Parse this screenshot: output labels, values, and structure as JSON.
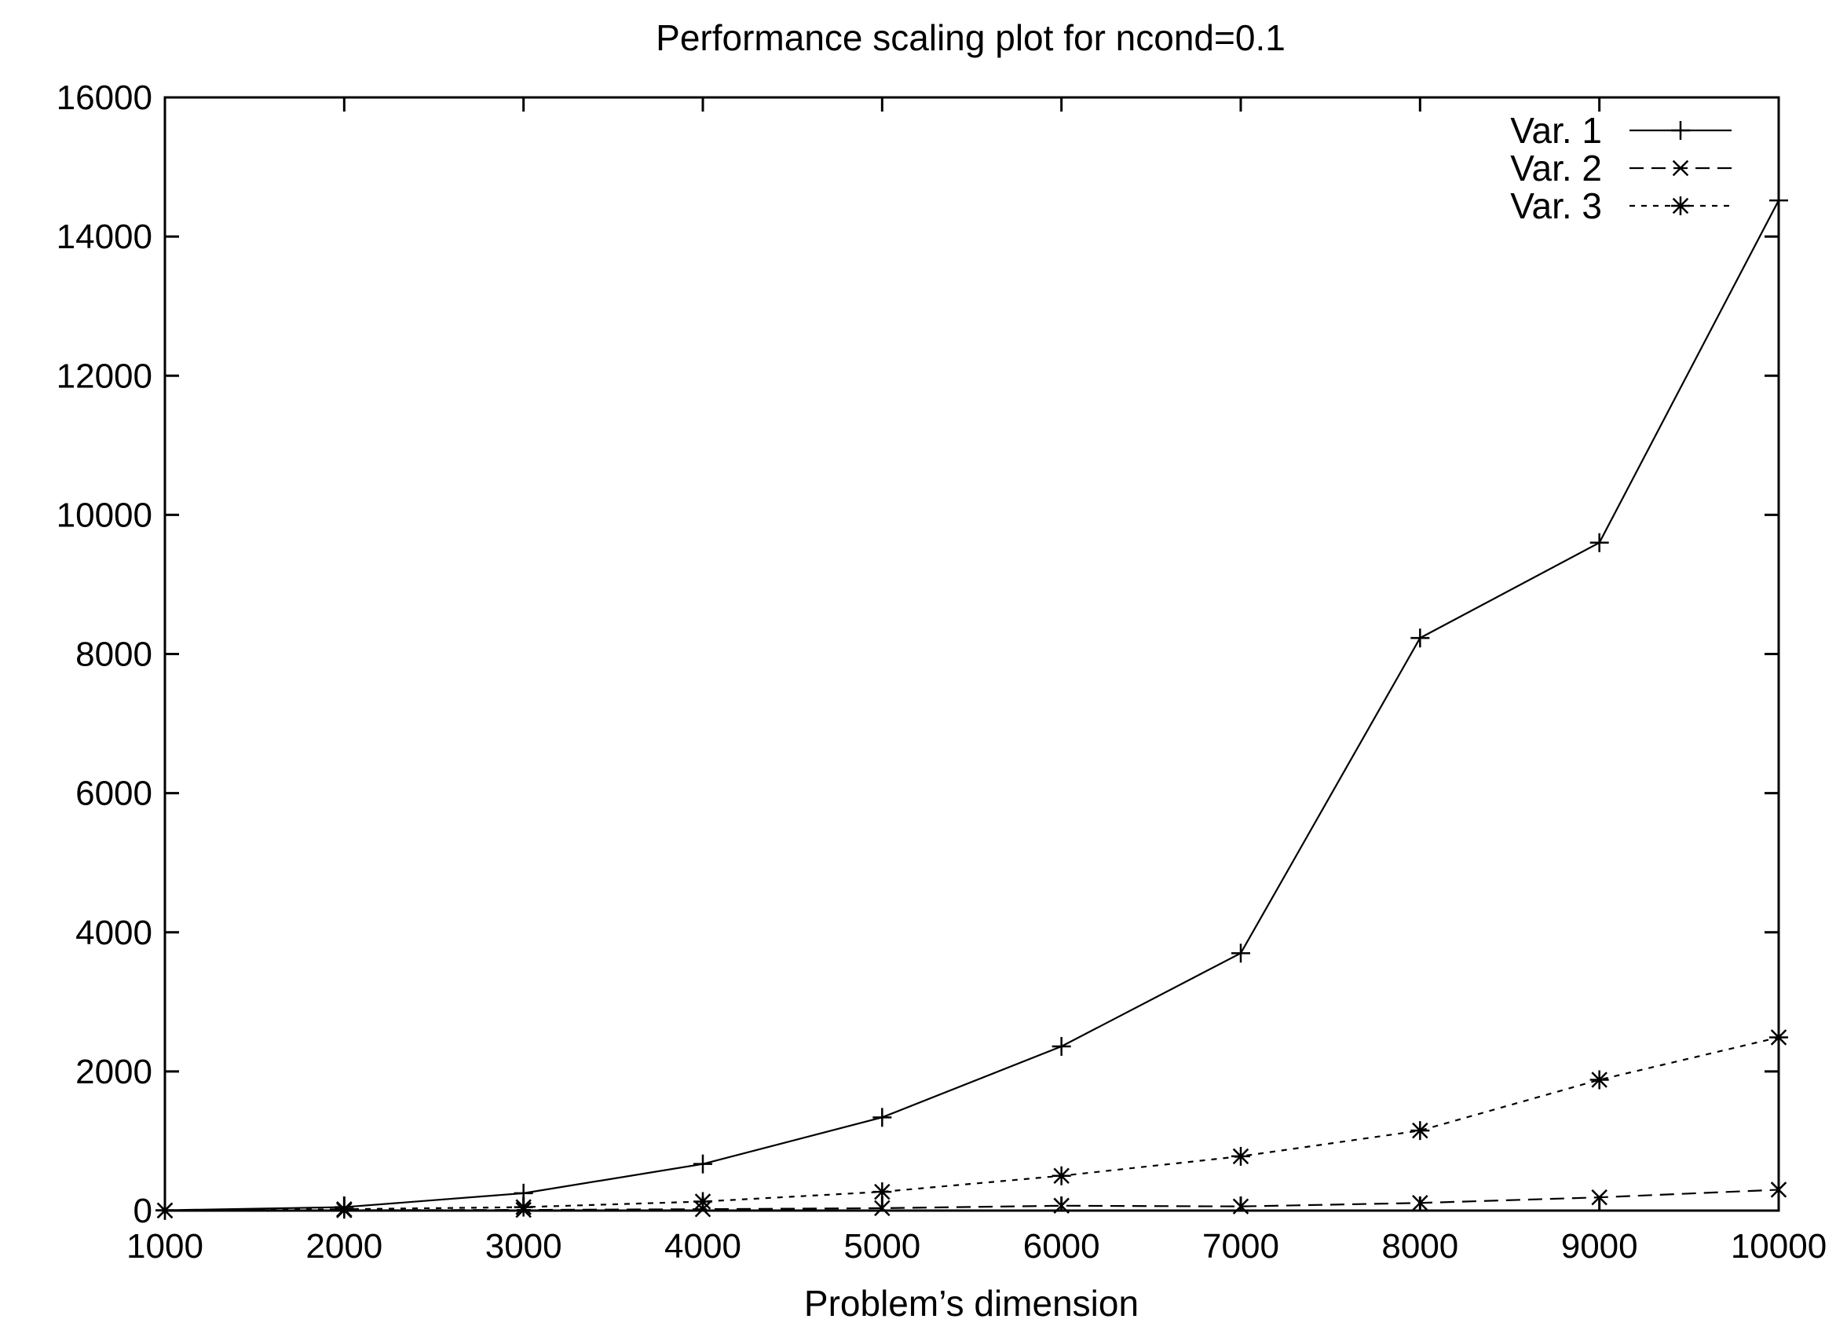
{
  "chart_data": {
    "type": "line",
    "title": "Performance scaling plot for ncond=0.1",
    "xlabel": "Problem’s dimension",
    "ylabel": "",
    "xlim": [
      1000,
      10000
    ],
    "ylim": [
      0,
      16000
    ],
    "x": [
      1000,
      2000,
      3000,
      4000,
      5000,
      6000,
      7000,
      8000,
      9000,
      10000
    ],
    "xticks": [
      "1000",
      "2000",
      "3000",
      "4000",
      "5000",
      "6000",
      "7000",
      "8000",
      "9000",
      "10000"
    ],
    "yticks": [
      "0",
      "2000",
      "4000",
      "6000",
      "8000",
      "10000",
      "12000",
      "14000",
      "16000"
    ],
    "grid": false,
    "legend_position": "top-right",
    "series": [
      {
        "name": "Var. 1",
        "line_style": "solid",
        "marker": "plus",
        "values": [
          5,
          50,
          250,
          670,
          1340,
          2360,
          3700,
          8230,
          9600,
          14520
        ]
      },
      {
        "name": "Var. 2",
        "line_style": "dashed",
        "marker": "cross",
        "values": [
          1,
          5,
          10,
          20,
          35,
          70,
          60,
          110,
          190,
          300
        ]
      },
      {
        "name": "Var. 3",
        "line_style": "dotted",
        "marker": "star",
        "values": [
          2,
          20,
          50,
          130,
          270,
          500,
          780,
          1150,
          1880,
          2490
        ]
      }
    ]
  }
}
